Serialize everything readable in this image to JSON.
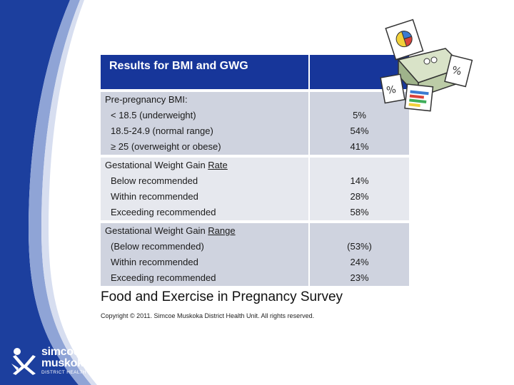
{
  "table": {
    "header": {
      "title": "Results for BMI and GWG",
      "value_header": ""
    },
    "sections": [
      {
        "heading": "Pre-pregnancy BMI:",
        "heading_underlined": "",
        "rows": [
          {
            "label": "< 18.5 (underweight)",
            "value": "5%"
          },
          {
            "label": "18.5-24.9 (normal range)",
            "value": "54%"
          },
          {
            "label": "≥ 25 (overweight or obese)",
            "value": "41%"
          }
        ]
      },
      {
        "heading": "Gestational Weight Gain ",
        "heading_underlined": "Rate",
        "rows": [
          {
            "label": "Below recommended",
            "value": "14%"
          },
          {
            "label": "Within recommended",
            "value": "28%"
          },
          {
            "label": "Exceeding recommended",
            "value": "58%"
          }
        ]
      },
      {
        "heading": "Gestational Weight Gain ",
        "heading_underlined": "Range",
        "rows": [
          {
            "label": "(Below recommended)",
            "value": "(53%)"
          },
          {
            "label": "Within recommended",
            "value": "24%"
          },
          {
            "label": "Exceeding recommended",
            "value": "23%"
          }
        ]
      }
    ]
  },
  "footer": {
    "survey_title": "Food and Exercise in Pregnancy Survey",
    "copyright": "Copyright © 2011. Simcoe Muskoka District Health Unit. All rights reserved."
  },
  "logo": {
    "line1": "simcoe",
    "line2": "muskoka",
    "line3": "DISTRICT HEALTH UNIT"
  },
  "icons": {
    "clipart": "printer-with-reports-icon",
    "logo_mark": "people-figures-logo-icon"
  },
  "colors": {
    "header_blue": "#17369a",
    "swoosh_blue": "#1c3f9e",
    "row_dark": "#cfd3df",
    "row_light": "#e6e8ee"
  }
}
